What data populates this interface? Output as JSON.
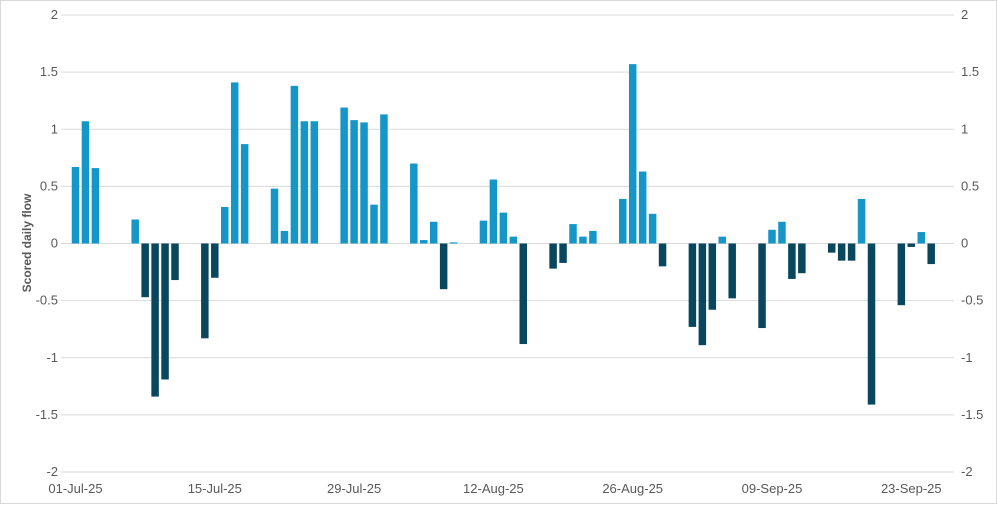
{
  "chart_data": {
    "type": "bar",
    "title": "",
    "xlabel": "",
    "ylabel": "Scored daily flow",
    "ylim": [
      -2,
      2
    ],
    "yticks": [
      "2",
      "1.5",
      "1",
      "0.5",
      "0",
      "-0.5",
      "-1",
      "-1.5",
      "-2"
    ],
    "secondary_axis": true,
    "grid": true,
    "legend": "none",
    "x_start": "01-Jul-25",
    "x_end": "29-Sep-25",
    "xtick_labels": [
      "01-Jul-25",
      "15-Jul-25",
      "29-Jul-25",
      "12-Aug-25",
      "26-Aug-25",
      "09-Sep-25",
      "23-Sep-25"
    ],
    "colors": {
      "positive": "#1496c8",
      "negative": "#08475e",
      "grid": "#d9d9d9",
      "text": "#595959"
    },
    "dates": [
      "01-Jul-25",
      "02-Jul-25",
      "03-Jul-25",
      "04-Jul-25",
      "05-Jul-25",
      "06-Jul-25",
      "07-Jul-25",
      "08-Jul-25",
      "09-Jul-25",
      "10-Jul-25",
      "11-Jul-25",
      "12-Jul-25",
      "13-Jul-25",
      "14-Jul-25",
      "15-Jul-25",
      "16-Jul-25",
      "17-Jul-25",
      "18-Jul-25",
      "19-Jul-25",
      "20-Jul-25",
      "21-Jul-25",
      "22-Jul-25",
      "23-Jul-25",
      "24-Jul-25",
      "25-Jul-25",
      "26-Jul-25",
      "27-Jul-25",
      "28-Jul-25",
      "29-Jul-25",
      "30-Jul-25",
      "31-Jul-25",
      "01-Aug-25",
      "02-Aug-25",
      "03-Aug-25",
      "04-Aug-25",
      "05-Aug-25",
      "06-Aug-25",
      "07-Aug-25",
      "08-Aug-25",
      "09-Aug-25",
      "10-Aug-25",
      "11-Aug-25",
      "12-Aug-25",
      "13-Aug-25",
      "14-Aug-25",
      "15-Aug-25",
      "16-Aug-25",
      "17-Aug-25",
      "18-Aug-25",
      "19-Aug-25",
      "20-Aug-25",
      "21-Aug-25",
      "22-Aug-25",
      "23-Aug-25",
      "24-Aug-25",
      "25-Aug-25",
      "26-Aug-25",
      "27-Aug-25",
      "28-Aug-25",
      "29-Aug-25",
      "30-Aug-25",
      "31-Aug-25",
      "01-Sep-25",
      "02-Sep-25",
      "03-Sep-25",
      "04-Sep-25",
      "05-Sep-25",
      "06-Sep-25",
      "07-Sep-25",
      "08-Sep-25",
      "09-Sep-25",
      "10-Sep-25",
      "11-Sep-25",
      "12-Sep-25",
      "13-Sep-25",
      "14-Sep-25",
      "15-Sep-25",
      "16-Sep-25",
      "17-Sep-25",
      "18-Sep-25",
      "19-Sep-25",
      "20-Sep-25",
      "21-Sep-25",
      "22-Sep-25",
      "23-Sep-25",
      "24-Sep-25",
      "25-Sep-25",
      "26-Sep-25",
      "27-Sep-25",
      "28-Sep-25",
      "29-Sep-25"
    ],
    "values": [
      0.67,
      1.07,
      0.66,
      null,
      null,
      null,
      0.21,
      -0.47,
      -1.34,
      -1.19,
      -0.32,
      null,
      null,
      -0.83,
      -0.3,
      0.32,
      1.41,
      0.87,
      null,
      null,
      0.48,
      0.11,
      1.38,
      1.07,
      1.07,
      null,
      null,
      1.19,
      1.08,
      1.06,
      0.34,
      1.13,
      null,
      null,
      0.7,
      0.03,
      0.19,
      -0.4,
      0.01,
      null,
      null,
      0.2,
      0.56,
      0.27,
      0.06,
      -0.88,
      null,
      null,
      -0.22,
      -0.17,
      0.17,
      0.06,
      0.11,
      null,
      null,
      0.39,
      1.57,
      0.63,
      0.26,
      -0.2,
      null,
      null,
      -0.73,
      -0.89,
      -0.58,
      0.06,
      -0.48,
      null,
      null,
      -0.74,
      0.12,
      0.19,
      -0.31,
      -0.26,
      null,
      null,
      -0.08,
      -0.15,
      -0.15,
      0.39,
      -1.41,
      null,
      null,
      -0.54,
      -0.03,
      0.1,
      -0.18,
      null,
      null,
      null,
      null
    ]
  }
}
